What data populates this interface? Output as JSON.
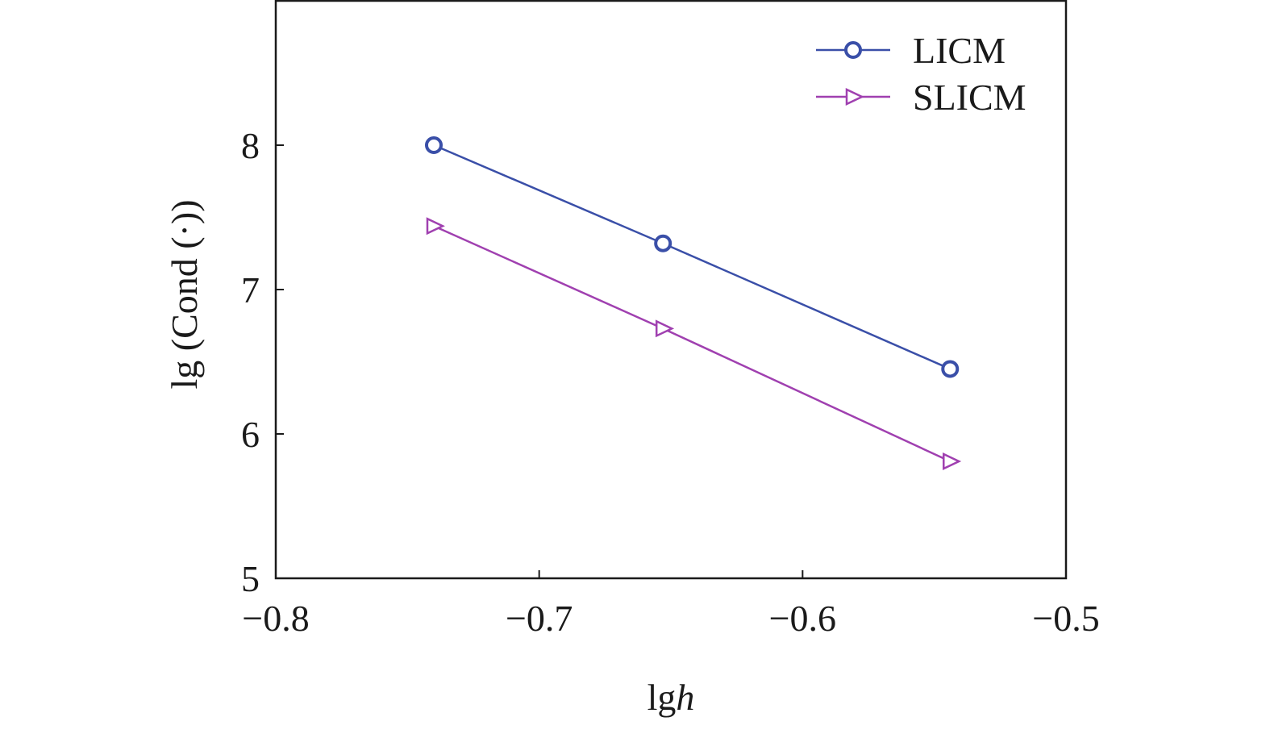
{
  "chart_data": {
    "type": "line",
    "title": "",
    "xlabel": {
      "prefix": "lg",
      "italic": "h"
    },
    "ylabel": "lg (Cond (·))",
    "xlim": [
      -0.8,
      -0.5
    ],
    "ylim": [
      5,
      9
    ],
    "xticks": [
      -0.8,
      -0.7,
      -0.6,
      -0.5
    ],
    "xtick_labels": [
      "−0.8",
      "−0.7",
      "−0.6",
      "−0.5"
    ],
    "yticks": [
      5,
      6,
      7,
      8
    ],
    "ytick_labels": [
      "5",
      "6",
      "7",
      "8"
    ],
    "grid": false,
    "legend_position": "top-right",
    "series": [
      {
        "name": "LICM",
        "marker": "circle",
        "color": "#3a4fa8",
        "x": [
          -0.74,
          -0.653,
          -0.544
        ],
        "y": [
          8.0,
          7.32,
          6.45
        ]
      },
      {
        "name": "SLICM",
        "marker": "triangle-right",
        "color": "#a040b0",
        "x": [
          -0.74,
          -0.653,
          -0.544
        ],
        "y": [
          7.44,
          6.73,
          5.81
        ]
      }
    ]
  }
}
